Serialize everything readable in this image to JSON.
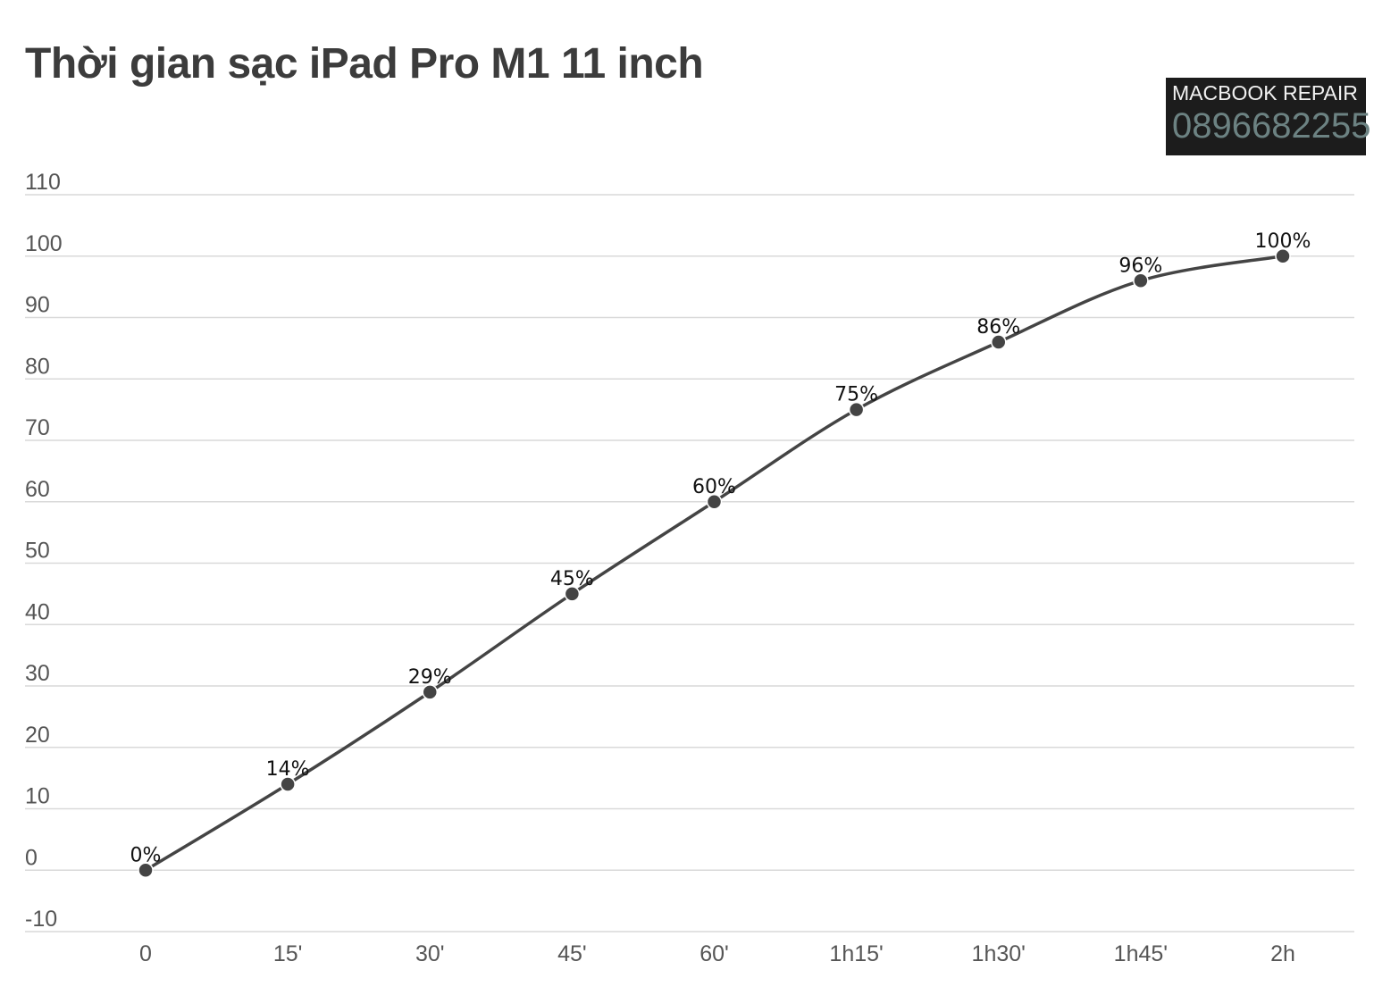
{
  "chart_data": {
    "type": "line",
    "title": "Thời gian sạc iPad Pro M1 11 inch",
    "categories": [
      "0",
      "15'",
      "30'",
      "45'",
      "60'",
      "1h15'",
      "1h30'",
      "1h45'",
      "2h"
    ],
    "series": [
      {
        "values": [
          0,
          14,
          29,
          45,
          60,
          75,
          86,
          96,
          100
        ],
        "labels": [
          "0%",
          "14%",
          "29%",
          "45%",
          "60%",
          "75%",
          "86%",
          "96%",
          "100%"
        ],
        "color": "#444444"
      }
    ],
    "yticks": [
      110,
      100,
      90,
      80,
      70,
      60,
      50,
      40,
      30,
      20,
      10,
      0,
      -10
    ],
    "ylim": [
      -10,
      110
    ],
    "xlabel": "",
    "ylabel": "",
    "grid": true,
    "smooth": true
  },
  "watermark": {
    "line1": "MACBOOK REPAIR",
    "phone": "0896682255"
  },
  "colors": {
    "line": "#444444",
    "grid": "#d9d9d9",
    "watermark_bg": "#1c1c1c",
    "watermark_phone": "#6c8282"
  }
}
